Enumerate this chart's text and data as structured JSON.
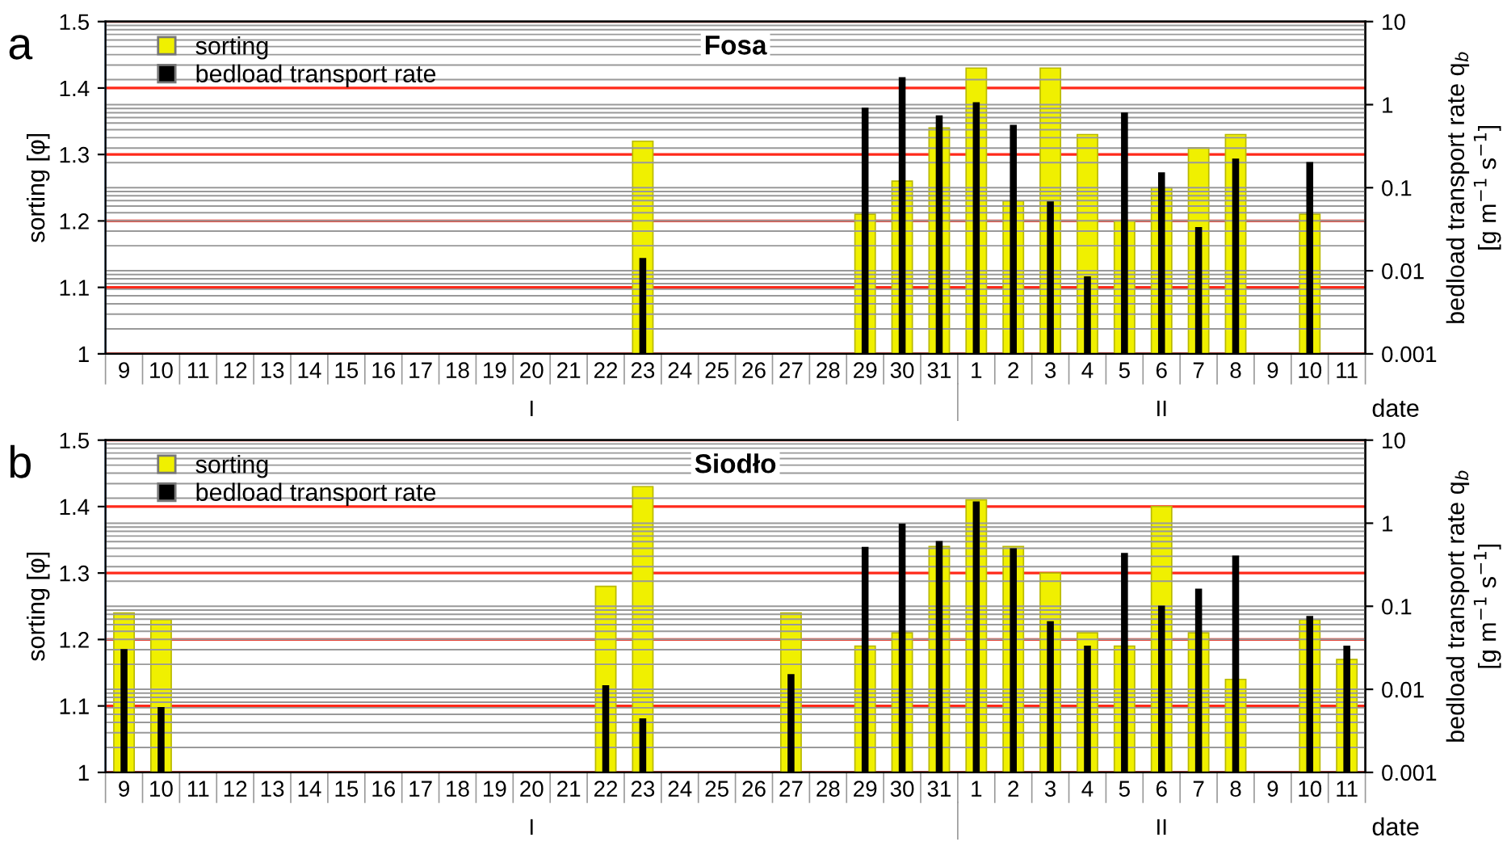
{
  "chart_data": [
    {
      "type": "bar",
      "title": "Fosa",
      "xlabel": "date",
      "ylabel": "sorting [φ]",
      "y2label": "bedload transport rate q$_{b}$\n[g m$^{−1}$ s$^{−1}$]",
      "categories": [
        "9",
        "10",
        "11",
        "12",
        "13",
        "14",
        "15",
        "16",
        "17",
        "18",
        "19",
        "20",
        "21",
        "22",
        "23",
        "24",
        "25",
        "26",
        "27",
        "28",
        "29",
        "30",
        "31",
        "1",
        "2",
        "3",
        "4",
        "5",
        "6",
        "7",
        "8",
        "9",
        "10",
        "11"
      ],
      "series": [
        {
          "name": "sorting",
          "color": "#f0f000",
          "values": [
            null,
            null,
            null,
            null,
            null,
            null,
            null,
            null,
            null,
            null,
            null,
            null,
            null,
            null,
            1.32,
            null,
            null,
            null,
            null,
            null,
            1.21,
            1.26,
            1.34,
            1.43,
            1.23,
            1.43,
            1.33,
            1.2,
            1.25,
            1.31,
            1.33,
            null,
            1.21,
            null
          ]
        },
        {
          "name": "bedload transport rate",
          "color": "#000000",
          "axis": "y2",
          "values": [
            null,
            null,
            null,
            null,
            null,
            null,
            null,
            null,
            null,
            null,
            null,
            null,
            null,
            null,
            0.014,
            null,
            null,
            null,
            null,
            null,
            0.9,
            2.1,
            0.73,
            1.05,
            0.56,
            0.067,
            0.0084,
            0.79,
            0.15,
            0.033,
            0.22,
            null,
            0.2,
            null
          ]
        }
      ],
      "ylim": [
        1,
        1.5
      ],
      "yticks": [
        1,
        1.1,
        1.2,
        1.3,
        1.4,
        1.5
      ],
      "y2lim": [
        0.001,
        10
      ],
      "y2ticks": [
        0.001,
        0.01,
        0.1,
        1,
        10
      ],
      "log": "y2",
      "grid": true,
      "legend": "top left",
      "annotations": [
        "a",
        "I",
        "II"
      ]
    },
    {
      "type": "bar",
      "title": "Siodło",
      "xlabel": "date",
      "ylabel": "sorting [φ]",
      "y2label": "bedload transport rate q$_{b}$\n[g m$^{−1}$ s$^{−1}$]",
      "categories": [
        "9",
        "10",
        "11",
        "12",
        "13",
        "14",
        "15",
        "16",
        "17",
        "18",
        "19",
        "20",
        "21",
        "22",
        "23",
        "24",
        "25",
        "26",
        "27",
        "28",
        "29",
        "30",
        "31",
        "1",
        "2",
        "3",
        "4",
        "5",
        "6",
        "7",
        "8",
        "9",
        "10",
        "11"
      ],
      "series": [
        {
          "name": "sorting",
          "color": "#f0f000",
          "values": [
            1.24,
            1.23,
            null,
            null,
            null,
            null,
            null,
            null,
            null,
            null,
            null,
            null,
            null,
            1.28,
            1.43,
            null,
            null,
            null,
            1.24,
            null,
            1.19,
            1.21,
            1.34,
            1.41,
            1.34,
            1.3,
            1.21,
            1.19,
            1.4,
            1.21,
            1.14,
            null,
            1.23,
            1.17
          ]
        },
        {
          "name": "bedload transport rate",
          "color": "#000000",
          "axis": "y2",
          "values": [
            0.03,
            0.006,
            null,
            null,
            null,
            null,
            null,
            null,
            null,
            null,
            null,
            null,
            null,
            0.011,
            0.0044,
            null,
            null,
            null,
            0.015,
            null,
            0.51,
            0.97,
            0.6,
            1.8,
            0.49,
            0.065,
            0.033,
            0.43,
            0.1,
            0.16,
            0.4,
            null,
            0.075,
            0.033
          ]
        }
      ],
      "ylim": [
        1,
        1.5
      ],
      "yticks": [
        1,
        1.1,
        1.2,
        1.3,
        1.4,
        1.5
      ],
      "y2lim": [
        0.001,
        10
      ],
      "y2ticks": [
        0.001,
        0.01,
        0.1,
        1,
        10
      ],
      "log": "y2",
      "grid": true,
      "legend": "top left",
      "annotations": [
        "b",
        "I",
        "II"
      ]
    }
  ]
}
